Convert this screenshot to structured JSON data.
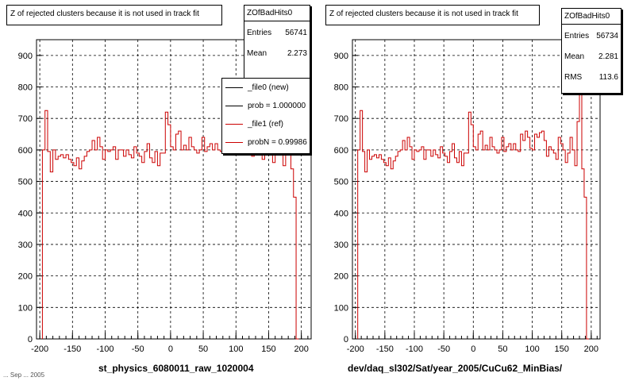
{
  "footer_text": "... Sep ... 2005",
  "panels": [
    {
      "title": "Z of rejected clusters  because it is not used in track fit",
      "xlabel": "st_physics_6080011_raw_1020004",
      "stats": {
        "name": "ZOfBadHits0",
        "rows": [
          {
            "label": "Entries",
            "value": "56741"
          },
          {
            "label": "Mean",
            "value": "2.273"
          }
        ]
      },
      "legend": [
        {
          "label": "_file0 (new)",
          "color": "#000000"
        },
        {
          "label": "prob = 1.000000",
          "color": "#000000"
        },
        {
          "label": "_file1 (ref)",
          "color": "#cc0000"
        },
        {
          "label": "probN = 0.99986",
          "color": "#cc0000"
        }
      ]
    },
    {
      "title": "Z of rejected clusters  because it is not used in track fit",
      "xlabel": "dev/daq_sl302/Sat/year_2005/CuCu62_MinBias/",
      "stats": {
        "name": "ZOfBadHits0",
        "rows": [
          {
            "label": "Entries",
            "value": "56734"
          },
          {
            "label": "Mean",
            "value": "2.281"
          },
          {
            "label": "RMS",
            "value": "113.6"
          }
        ]
      },
      "legend": []
    }
  ],
  "chart_data": [
    {
      "type": "histogram",
      "title": "Z of rejected clusters  because it is not used in track fit",
      "xlabel": "st_physics_6080011_raw_1020004",
      "xlim": [
        -205,
        215
      ],
      "ylim": [
        0,
        950
      ],
      "xticks": [
        -200,
        -150,
        -100,
        -50,
        0,
        50,
        100,
        150,
        200
      ],
      "yticks": [
        0,
        100,
        200,
        300,
        400,
        500,
        600,
        700,
        800,
        900
      ],
      "grid": true,
      "bin_width": 4,
      "x_start": -196,
      "series": [
        {
          "name": "_file1 (ref)",
          "color": "#cc0000",
          "values": [
            600,
            725,
            595,
            530,
            600,
            570,
            580,
            585,
            575,
            585,
            570,
            560,
            550,
            575,
            540,
            565,
            580,
            595,
            600,
            630,
            600,
            640,
            610,
            570,
            600,
            595,
            600,
            610,
            570,
            600,
            600,
            580,
            600,
            585,
            575,
            610,
            590,
            580,
            560,
            595,
            620,
            575,
            560,
            595,
            550,
            590,
            590,
            720,
            680,
            610,
            600,
            650,
            660,
            600,
            615,
            600,
            640,
            610,
            600,
            590,
            600,
            640,
            595,
            610,
            620,
            600,
            620,
            600,
            595,
            650,
            630,
            660,
            640,
            605,
            600,
            650,
            640,
            655,
            660,
            630,
            580,
            610,
            600,
            590,
            570,
            640,
            620,
            600,
            560,
            590,
            640,
            600,
            550,
            690,
            900,
            540,
            450,
            0
          ]
        }
      ]
    },
    {
      "type": "histogram",
      "title": "Z of rejected clusters  because it is not used in track fit",
      "xlabel": "dev/daq_sl302/Sat/year_2005/CuCu62_MinBias/",
      "xlim": [
        -205,
        215
      ],
      "ylim": [
        0,
        950
      ],
      "xticks": [
        -200,
        -150,
        -100,
        -50,
        0,
        50,
        100,
        150,
        200
      ],
      "yticks": [
        0,
        100,
        200,
        300,
        400,
        500,
        600,
        700,
        800,
        900
      ],
      "grid": true,
      "bin_width": 4,
      "x_start": -196,
      "series": [
        {
          "name": "_file1 (ref)",
          "color": "#cc0000",
          "values": [
            600,
            725,
            595,
            530,
            600,
            570,
            580,
            585,
            575,
            585,
            570,
            560,
            550,
            575,
            540,
            565,
            580,
            595,
            600,
            630,
            600,
            640,
            610,
            570,
            600,
            595,
            600,
            610,
            570,
            600,
            600,
            580,
            600,
            585,
            575,
            610,
            590,
            580,
            560,
            595,
            620,
            575,
            560,
            595,
            550,
            590,
            590,
            720,
            680,
            610,
            600,
            650,
            660,
            600,
            615,
            600,
            640,
            610,
            600,
            590,
            600,
            640,
            595,
            610,
            620,
            600,
            620,
            600,
            595,
            650,
            630,
            660,
            640,
            605,
            600,
            650,
            640,
            655,
            660,
            630,
            580,
            610,
            600,
            590,
            570,
            640,
            620,
            600,
            560,
            590,
            640,
            600,
            550,
            690,
            900,
            540,
            450,
            0
          ]
        }
      ]
    }
  ]
}
